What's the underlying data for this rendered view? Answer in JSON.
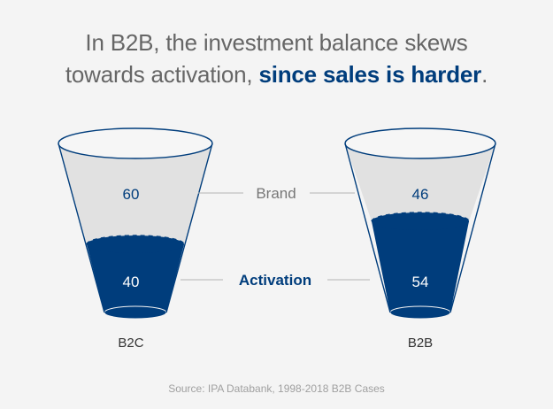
{
  "title": {
    "line1": "In B2B, the investment balance skews",
    "line2_plain": "towards activation, ",
    "line2_highlight": "since sales is harder",
    "line2_end": "."
  },
  "legend": {
    "brand": "Brand",
    "activation": "Activation"
  },
  "cups": [
    {
      "label": "B2C",
      "brand": 60,
      "activation": 40
    },
    {
      "label": "B2B",
      "brand": 46,
      "activation": 54
    }
  ],
  "source": "Source: IPA Databank, 1998-2018 B2B Cases",
  "colors": {
    "activation": "#003d7c",
    "brand_fill": "#e1e1e1",
    "outline": "#003d7c",
    "title_grey": "#666666",
    "connector": "#b5b5b5"
  }
}
